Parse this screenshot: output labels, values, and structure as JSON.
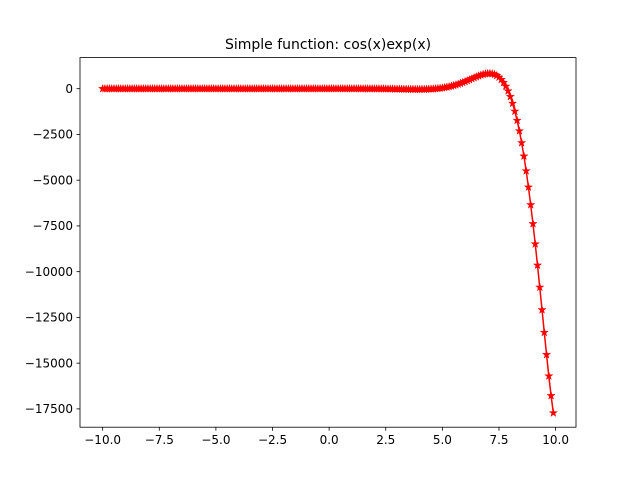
{
  "chart_data": {
    "type": "line",
    "title": "Simple function: cos(x)exp(x)",
    "xlabel": "",
    "ylabel": "",
    "function": "cos(x)*exp(x)",
    "x_range": [
      -10,
      9.9
    ],
    "x_step": 0.1,
    "xlim": [
      -11.0,
      10.9
    ],
    "ylim": [
      -18500,
      1700
    ],
    "x_ticks": [
      -10,
      -7.5,
      -5,
      -2.5,
      0,
      2.5,
      5,
      7.5,
      10
    ],
    "x_tick_labels": [
      "−10.0",
      "−7.5",
      "−5.0",
      "−2.5",
      "0.0",
      "2.5",
      "5.0",
      "7.5",
      "10.0"
    ],
    "y_ticks": [
      0,
      -2500,
      -5000,
      -7500,
      -10000,
      -12500,
      -15000,
      -17500
    ],
    "y_tick_labels": [
      "0",
      "−2500",
      "−5000",
      "−7500",
      "−10000",
      "−12500",
      "−15000",
      "−17500"
    ],
    "grid": false,
    "series": [
      {
        "color": "#ff0000",
        "marker": "star",
        "line_style": "solid"
      }
    ]
  }
}
